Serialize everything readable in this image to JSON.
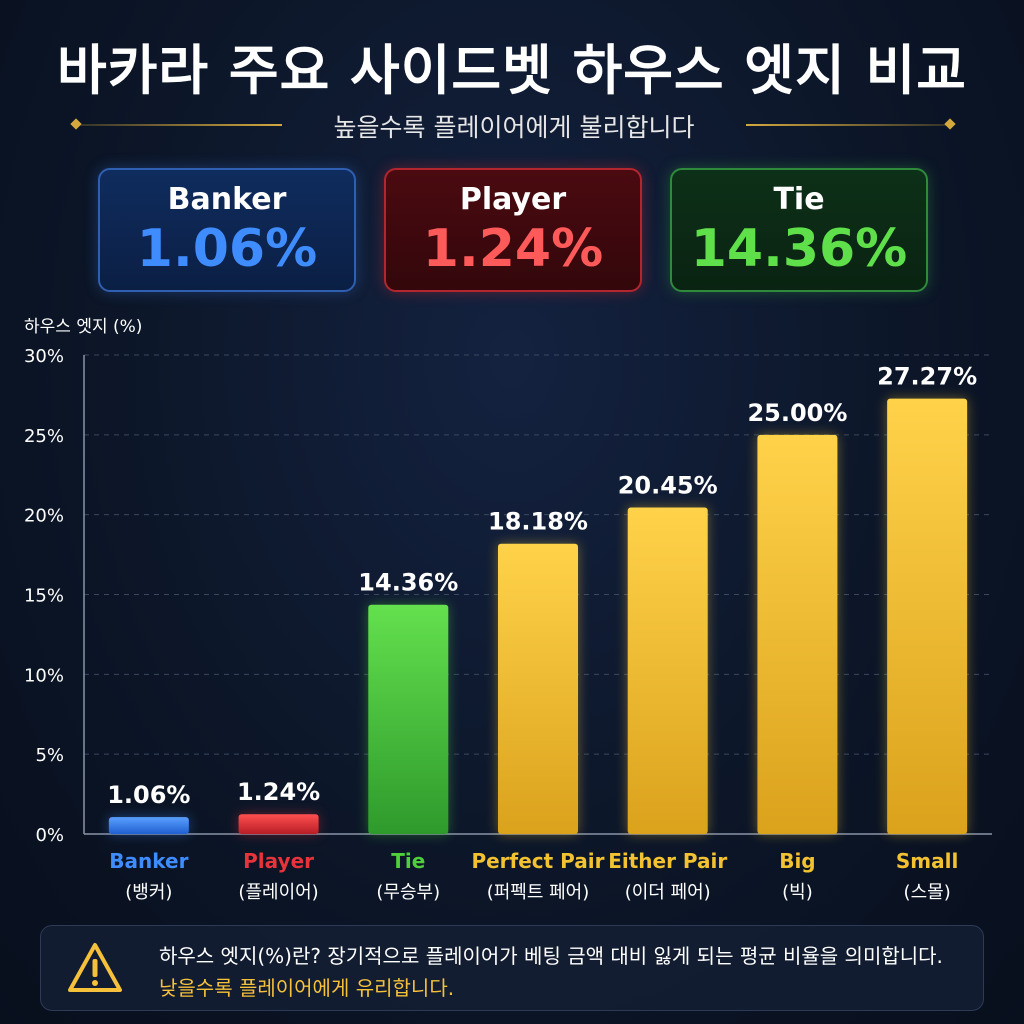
{
  "title": "바카라 주요 사이드벳 하우스 엣지 비교",
  "subtitle": "높을수록 플레이어에게 불리합니다",
  "cards": [
    {
      "label": "Banker",
      "value": "1.06%"
    },
    {
      "label": "Player",
      "value": "1.24%"
    },
    {
      "label": "Tie",
      "value": "14.36%"
    }
  ],
  "colors": {
    "banker": "#3f8cff",
    "player": "#e8333a",
    "tie": "#4fcf3a",
    "side": "#f2c230",
    "grid": "#3a475f",
    "axis_text": "#ffffff"
  },
  "chart_data": {
    "type": "bar",
    "ylabel": "하우스 엣지 (%)",
    "ylim": [
      0,
      30
    ],
    "yticks": [
      0,
      5,
      10,
      15,
      20,
      25,
      30
    ],
    "ytick_labels": [
      "0%",
      "5%",
      "10%",
      "15%",
      "20%",
      "25%",
      "30%"
    ],
    "grid": true,
    "categories": [
      "Banker",
      "Player",
      "Tie",
      "Perfect Pair",
      "Either Pair",
      "Big",
      "Small"
    ],
    "categories_ko": [
      "(뱅커)",
      "(플레이어)",
      "(무승부)",
      "(퍼펙트 페어)",
      "(이더 페어)",
      "(빅)",
      "(스몰)"
    ],
    "values": [
      1.06,
      1.24,
      14.36,
      18.18,
      20.45,
      25.0,
      27.27
    ],
    "value_labels": [
      "1.06%",
      "1.24%",
      "14.36%",
      "18.18%",
      "20.45%",
      "25.00%",
      "27.27%"
    ],
    "bar_colors": [
      "#3f8cff",
      "#e8333a",
      "#4fcf3a",
      "#f2c230",
      "#f2c230",
      "#f2c230",
      "#f2c230"
    ]
  },
  "note": {
    "line1": "하우스 엣지(%)란? 장기적으로 플레이어가 베팅 금액 대비 잃게 되는 평균 비율을 의미합니다.",
    "line2": "낮을수록 플레이어에게 유리합니다."
  }
}
